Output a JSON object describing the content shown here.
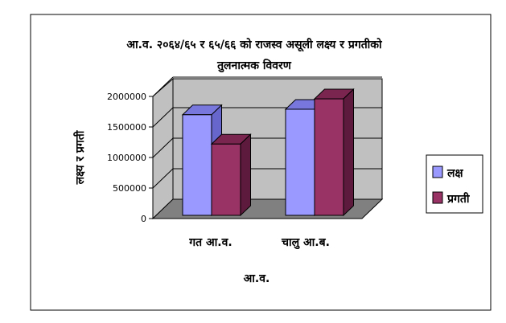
{
  "chart_data": {
    "type": "bar",
    "title": "आ.व. २०६४/६५ र ६५/६६ को राजस्व असूली लक्ष्य र प्रगतीको",
    "subtitle": "तुलनात्मक विवरण",
    "xlabel": "आ.व.",
    "ylabel": "लक्ष्य र प्रगती",
    "categories": [
      "गत आ.व.",
      "चालु आ.ब."
    ],
    "series": [
      {
        "name": "लक्ष",
        "values": [
          1700000,
          1790000
        ],
        "color": "#9999ff",
        "side_color": "#6666cc",
        "top_color": "#7777dd"
      },
      {
        "name": "प्रगती",
        "values": [
          1220000,
          1960000
        ],
        "color": "#993366",
        "side_color": "#5e1a3c",
        "top_color": "#7a2550"
      }
    ],
    "yticks": [
      "0",
      "500000",
      "1000000",
      "1500000",
      "2000000"
    ],
    "ylim": [
      0,
      2000000
    ],
    "grid": true,
    "legend": "right",
    "colors": {
      "wall": "#c0c0c0",
      "floor": "#808080",
      "border": "#000000"
    }
  }
}
